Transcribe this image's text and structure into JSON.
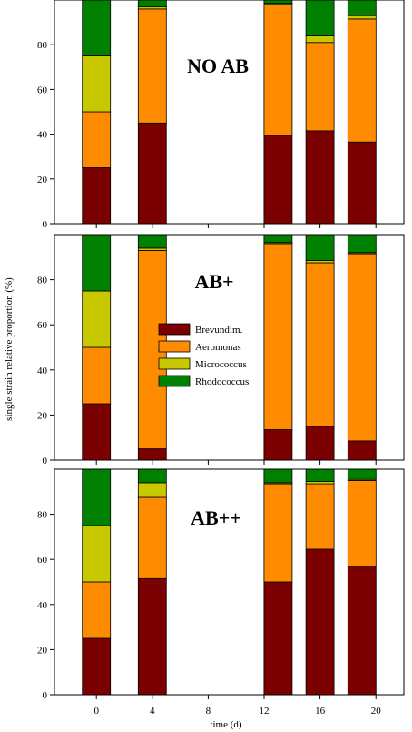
{
  "figure": {
    "ylabel": "single strain relative proportion (%)",
    "xlabel": "time (d)",
    "x_ticks": [
      "0",
      "4",
      "8",
      "12",
      "16",
      "20"
    ],
    "y_ticks": [
      "0",
      "20",
      "40",
      "60",
      "80"
    ],
    "legend": {
      "placement": "middle-panel-center",
      "entries": [
        "Brevundim.",
        "Aeromonas",
        "Micrococcus",
        "Rhodococcus"
      ]
    }
  },
  "chart_data": [
    {
      "type": "bar",
      "stacked": true,
      "title": "NO AB",
      "x": [
        0,
        4,
        13,
        16,
        19
      ],
      "ylim": [
        0,
        100
      ],
      "series": [
        {
          "name": "Brevundim.",
          "color": "#7b0000",
          "values": [
            25,
            45,
            39.5,
            41.5,
            36.5
          ]
        },
        {
          "name": "Aeromonas",
          "color": "#ff8c00",
          "values": [
            25,
            51,
            58.5,
            39.5,
            55
          ]
        },
        {
          "name": "Micrococcus",
          "color": "#c8c800",
          "values": [
            25,
            1,
            0.5,
            3,
            1.5
          ]
        },
        {
          "name": "Rhodococcus",
          "color": "#008000",
          "values": [
            25,
            3,
            1.5,
            16,
            7
          ]
        }
      ]
    },
    {
      "type": "bar",
      "stacked": true,
      "title": "AB+",
      "x": [
        0,
        4,
        13,
        16,
        19
      ],
      "ylim": [
        0,
        100
      ],
      "series": [
        {
          "name": "Brevundim.",
          "color": "#7b0000",
          "values": [
            25,
            5,
            13.5,
            15,
            8.5
          ]
        },
        {
          "name": "Aeromonas",
          "color": "#ff8c00",
          "values": [
            25,
            88,
            82.5,
            72.5,
            83
          ]
        },
        {
          "name": "Micrococcus",
          "color": "#c8c800",
          "values": [
            25,
            1,
            0.5,
            1,
            0.5
          ]
        },
        {
          "name": "Rhodococcus",
          "color": "#008000",
          "values": [
            25,
            6,
            3.5,
            11.5,
            8
          ]
        }
      ]
    },
    {
      "type": "bar",
      "stacked": true,
      "title": "AB++",
      "x": [
        0,
        4,
        13,
        16,
        19
      ],
      "ylim": [
        0,
        100
      ],
      "series": [
        {
          "name": "Brevundim.",
          "color": "#7b0000",
          "values": [
            25,
            51.5,
            50,
            64.5,
            57
          ]
        },
        {
          "name": "Aeromonas",
          "color": "#ff8c00",
          "values": [
            25,
            36,
            43.5,
            29,
            38
          ]
        },
        {
          "name": "Micrococcus",
          "color": "#c8c800",
          "values": [
            25,
            6.5,
            0.5,
            1,
            0.5
          ]
        },
        {
          "name": "Rhodococcus",
          "color": "#008000",
          "values": [
            25,
            6,
            6,
            5.5,
            4.5
          ]
        }
      ]
    }
  ]
}
